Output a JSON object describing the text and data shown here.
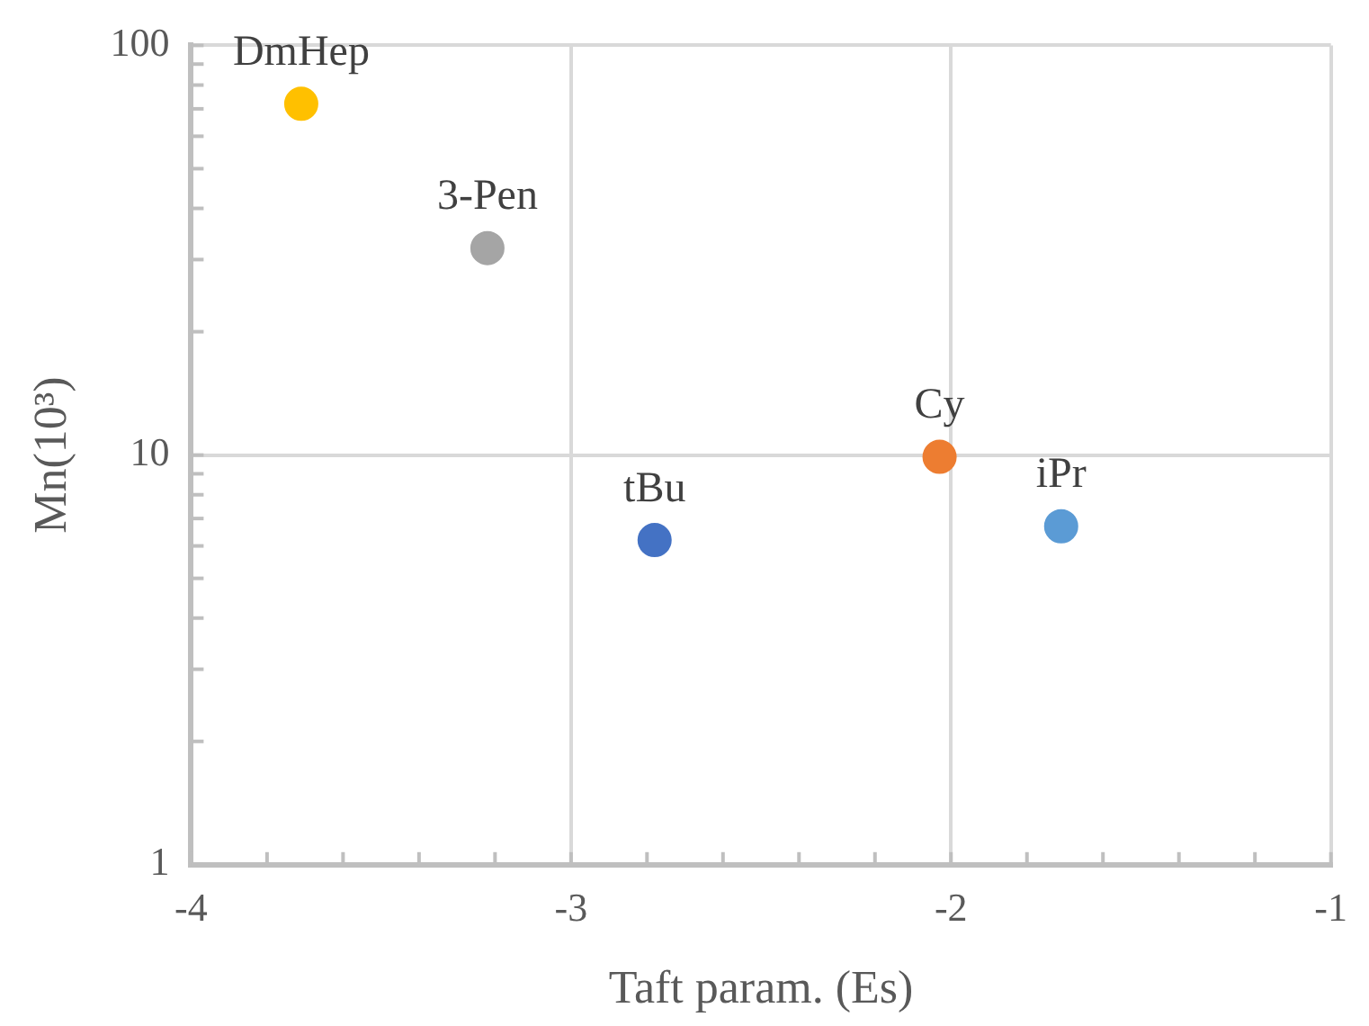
{
  "chart_data": {
    "type": "scatter",
    "xlabel": "Taft param. (Es)",
    "ylabel": "Mn(10³)",
    "log": true,
    "grid": true,
    "legend": false,
    "marker": "circle",
    "xlim": [
      -4,
      -1
    ],
    "xticks": [
      -4,
      {
        "value": -3.8,
        "label": null
      },
      {
        "value": -3.6,
        "label": null
      },
      {
        "value": -3.4,
        "label": null
      },
      {
        "value": -3.2,
        "label": null
      },
      -3,
      {
        "value": -2.8,
        "label": null
      },
      {
        "value": -2.6,
        "label": null
      },
      {
        "value": -2.4,
        "label": null
      },
      {
        "value": -2.2,
        "label": null
      },
      -2,
      {
        "value": -1.8,
        "label": null
      },
      {
        "value": -1.6,
        "label": null
      },
      {
        "value": -1.4,
        "label": null
      },
      {
        "value": -1.2,
        "label": null
      },
      -1
    ],
    "ylim": [
      1,
      100
    ],
    "yticks": [
      1,
      {
        "value": 2,
        "label": null
      },
      {
        "value": 3,
        "label": null
      },
      {
        "value": 4,
        "label": null
      },
      {
        "value": 5,
        "label": null
      },
      {
        "value": 6,
        "label": null
      },
      {
        "value": 7,
        "label": null
      },
      {
        "value": 8,
        "label": null
      },
      {
        "value": 9,
        "label": null
      },
      10,
      {
        "value": 20,
        "label": null
      },
      {
        "value": 30,
        "label": null
      },
      {
        "value": 40,
        "label": null
      },
      {
        "value": 50,
        "label": null
      },
      {
        "value": 60,
        "label": null
      },
      {
        "value": 70,
        "label": null
      },
      {
        "value": 80,
        "label": null
      },
      {
        "value": 90,
        "label": null
      },
      100
    ],
    "series": [
      {
        "name": "DmHep",
        "color": "#ffc000",
        "x": [
          -3.71
        ],
        "values": [
          72
        ]
      },
      {
        "name": "3-Pen",
        "color": "#a5a5a5",
        "x": [
          -3.22
        ],
        "values": [
          32
        ]
      },
      {
        "name": "tBu",
        "color": "#4472c4",
        "x": [
          -2.78
        ],
        "values": [
          6.2
        ]
      },
      {
        "name": "Cy",
        "color": "#ed7d31",
        "x": [
          -2.03
        ],
        "values": [
          9.9
        ]
      },
      {
        "name": "iPr",
        "color": "#5b9bd5",
        "x": [
          -1.71
        ],
        "values": [
          6.7
        ]
      }
    ]
  }
}
